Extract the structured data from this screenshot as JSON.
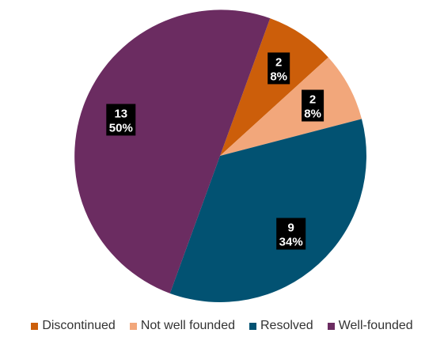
{
  "chart_data": {
    "type": "pie",
    "title": "",
    "slices": [
      {
        "label": "Discontinued",
        "value": 2,
        "percent_label": "8%",
        "color": "#CC5E0A"
      },
      {
        "label": "Not well founded",
        "value": 2,
        "percent_label": "8%",
        "color": "#F2A77B"
      },
      {
        "label": "Resolved",
        "value": 9,
        "percent_label": "34%",
        "color": "#025272"
      },
      {
        "label": "Well-founded",
        "value": 13,
        "percent_label": "50%",
        "color": "#6B2C61"
      }
    ],
    "legend_position": "bottom",
    "data_labels": "count and percent, white bold text on black boxes"
  }
}
